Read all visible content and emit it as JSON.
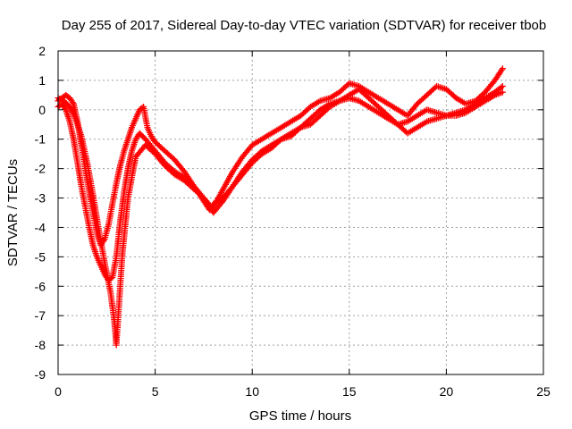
{
  "chart_data": {
    "type": "scatter",
    "title": "Day 255 of 2017, Sidereal Day-to-day VTEC variation (SDTVAR) for receiver tbob",
    "xlabel": "GPS time / hours",
    "ylabel": "SDTVAR / TECUs",
    "xlim": [
      0,
      25
    ],
    "ylim": [
      -9,
      2
    ],
    "x_ticks": [
      0,
      5,
      10,
      15,
      20,
      25
    ],
    "y_ticks": [
      -9,
      -8,
      -7,
      -6,
      -5,
      -4,
      -3,
      -2,
      -1,
      0,
      1,
      2
    ],
    "grid": true,
    "legend": "none",
    "marker": "plus",
    "series_color": "#ff0000",
    "series": [
      {
        "x": [
          0.0,
          0.2,
          0.4,
          0.6,
          0.8,
          1.0,
          1.2,
          1.4,
          1.6,
          1.8,
          2.0,
          2.2,
          2.4,
          2.6,
          2.8,
          3.0,
          3.2,
          3.4,
          3.6,
          3.8,
          4.0,
          4.2,
          4.4,
          4.6,
          4.8,
          5.0,
          5.5,
          6.0,
          6.5,
          7.0,
          7.5,
          7.8,
          8.0,
          8.5,
          9.0,
          9.5,
          10.0,
          10.5,
          11.0,
          11.5,
          12.0,
          12.5,
          13.0,
          13.5,
          14.0,
          14.5,
          15.0,
          15.5,
          16.0,
          16.5,
          17.0,
          17.5,
          18.0,
          18.5,
          19.0,
          19.5,
          20.0,
          20.5,
          21.0,
          21.5,
          22.0,
          22.5,
          22.9
        ],
        "y": [
          0.3,
          0.4,
          0.5,
          0.4,
          0.2,
          -0.4,
          -1.2,
          -2.0,
          -2.8,
          -3.5,
          -4.2,
          -4.6,
          -4.4,
          -3.9,
          -3.2,
          -2.5,
          -1.9,
          -1.4,
          -1.0,
          -0.6,
          -0.3,
          0.0,
          0.1,
          -0.6,
          -0.9,
          -1.1,
          -1.4,
          -1.7,
          -2.1,
          -2.6,
          -3.1,
          -3.4,
          -3.3,
          -2.7,
          -2.1,
          -1.6,
          -1.2,
          -1.0,
          -0.8,
          -0.6,
          -0.4,
          -0.2,
          0.1,
          0.3,
          0.4,
          0.6,
          0.9,
          0.8,
          0.6,
          0.4,
          0.2,
          0.0,
          -0.2,
          0.2,
          0.5,
          0.8,
          0.7,
          0.4,
          0.2,
          0.3,
          0.6,
          1.0,
          1.4
        ]
      },
      {
        "x": [
          0.0,
          0.2,
          0.4,
          0.6,
          0.8,
          1.0,
          1.2,
          1.4,
          1.6,
          1.8,
          2.0,
          2.2,
          2.4,
          2.6,
          2.8,
          3.0,
          3.2,
          3.4,
          3.6,
          3.8,
          4.0,
          4.2,
          4.5,
          5.0,
          5.5,
          6.0,
          6.5,
          7.0,
          7.5,
          7.9,
          8.0,
          8.5,
          9.0,
          9.5,
          10.0,
          10.5,
          11.0,
          11.5,
          12.0,
          12.5,
          13.0,
          13.5,
          14.0,
          14.5,
          15.0,
          15.5,
          16.0,
          16.5,
          17.0,
          17.5,
          18.0,
          18.5,
          19.0,
          19.5,
          20.0,
          20.5,
          21.0,
          21.5,
          22.0,
          22.5,
          22.9
        ],
        "y": [
          0.1,
          0.2,
          0.0,
          -0.4,
          -1.0,
          -1.8,
          -2.6,
          -3.3,
          -4.0,
          -4.6,
          -5.0,
          -5.3,
          -5.6,
          -5.8,
          -5.7,
          -5.0,
          -3.8,
          -2.8,
          -2.0,
          -1.4,
          -1.0,
          -0.8,
          -1.0,
          -1.4,
          -1.8,
          -2.1,
          -2.3,
          -2.6,
          -3.0,
          -3.3,
          -3.2,
          -3.0,
          -2.6,
          -2.2,
          -1.8,
          -1.5,
          -1.3,
          -1.0,
          -0.9,
          -0.6,
          -0.3,
          0.0,
          0.2,
          0.3,
          0.4,
          0.3,
          0.1,
          -0.1,
          -0.3,
          -0.5,
          -0.4,
          -0.2,
          0.0,
          -0.1,
          -0.2,
          -0.1,
          0.0,
          0.2,
          0.4,
          0.6,
          0.8
        ]
      },
      {
        "x": [
          0.0,
          0.3,
          0.6,
          0.9,
          1.2,
          1.5,
          1.8,
          2.1,
          2.4,
          2.7,
          2.9,
          3.0,
          3.1,
          3.3,
          3.6,
          4.0,
          4.5,
          5.0,
          5.5,
          6.0,
          6.5,
          7.0,
          7.5,
          8.0,
          8.5,
          9.0,
          9.5,
          10.0,
          10.5,
          11.0,
          11.5,
          12.0,
          12.5,
          13.0,
          13.5,
          14.0,
          14.5,
          15.0,
          15.5,
          16.0,
          16.5,
          17.0,
          17.5,
          18.0,
          18.5,
          19.0,
          19.5,
          20.0,
          20.5,
          21.0,
          21.5,
          22.0,
          22.5,
          22.9
        ],
        "y": [
          0.4,
          0.3,
          0.1,
          -0.3,
          -0.9,
          -1.8,
          -2.9,
          -4.1,
          -5.2,
          -6.2,
          -7.2,
          -8.0,
          -7.0,
          -5.0,
          -3.0,
          -1.6,
          -1.2,
          -1.5,
          -1.9,
          -2.2,
          -2.4,
          -2.7,
          -3.0,
          -3.5,
          -3.1,
          -2.6,
          -2.1,
          -1.7,
          -1.4,
          -1.2,
          -1.0,
          -0.8,
          -0.6,
          -0.5,
          -0.2,
          0.1,
          0.3,
          0.5,
          0.7,
          0.4,
          0.1,
          -0.2,
          -0.5,
          -0.8,
          -0.6,
          -0.4,
          -0.3,
          -0.2,
          -0.2,
          -0.1,
          0.1,
          0.3,
          0.5,
          0.6
        ]
      }
    ]
  }
}
